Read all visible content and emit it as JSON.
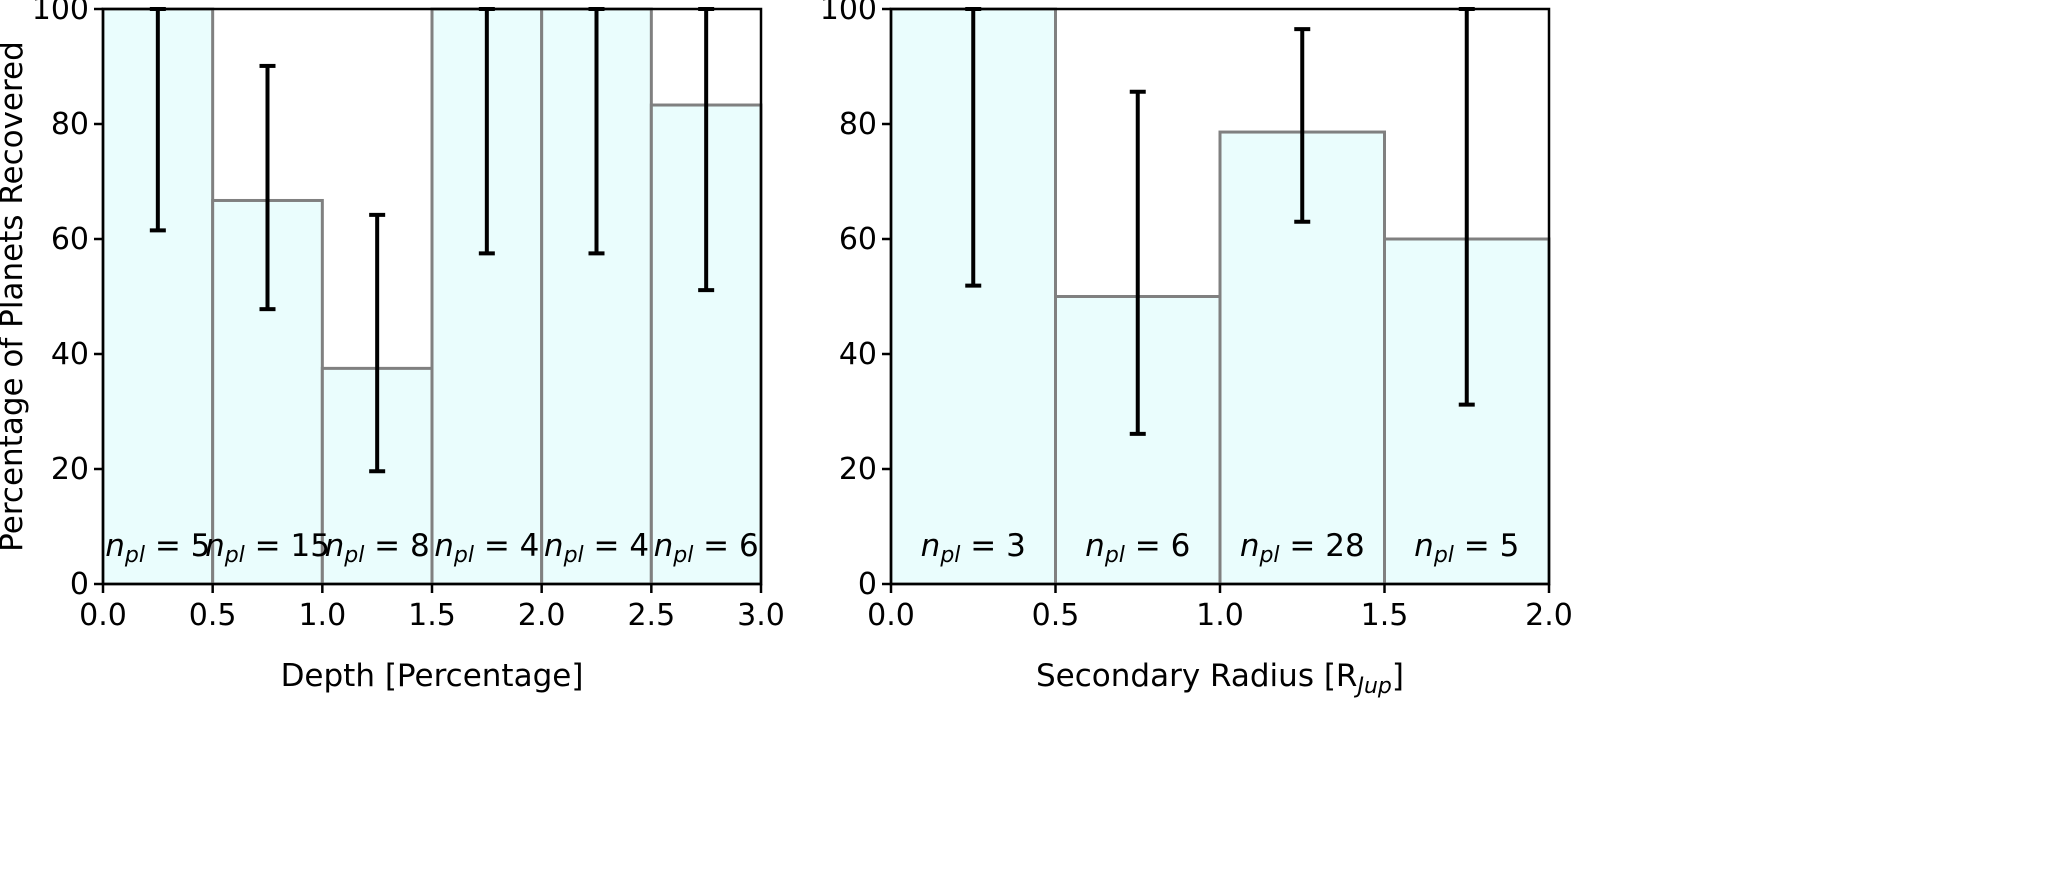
{
  "chart_data": [
    {
      "type": "bar",
      "bin_edges": [
        0.0,
        0.5,
        1.0,
        1.5,
        2.0,
        2.5,
        3.0
      ],
      "values": [
        100,
        66.7,
        37.5,
        100,
        100,
        83.3
      ],
      "error_low": [
        61.5,
        47.8,
        19.6,
        57.5,
        57.5,
        51.1
      ],
      "error_high": [
        100,
        90.1,
        64.2,
        100,
        100,
        100
      ],
      "n_pl": [
        "5",
        "15",
        "8",
        "4",
        "4",
        "6"
      ],
      "xlabel": "Depth [Percentage]",
      "ylabel": "Percentage of Planets Recovered",
      "xlim": [
        0.0,
        3.0
      ],
      "ylim": [
        0,
        100
      ],
      "xticks": [
        "0.0",
        "0.5",
        "1.0",
        "1.5",
        "2.0",
        "2.5",
        "3.0"
      ],
      "yticks": [
        "0",
        "20",
        "40",
        "60",
        "80",
        "100"
      ],
      "bar_color": "#eafdfd",
      "edge_color": "#808080",
      "grid": false
    },
    {
      "type": "bar",
      "bin_edges": [
        0.0,
        0.5,
        1.0,
        1.5,
        2.0
      ],
      "values": [
        100,
        50,
        78.6,
        60
      ],
      "error_low": [
        51.9,
        26.1,
        63.0,
        31.2
      ],
      "error_high": [
        100,
        85.6,
        96.5,
        100
      ],
      "n_pl": [
        "3",
        "6",
        "28",
        "5"
      ],
      "xlabel": "Secondary Radius [R",
      "xlabel_sub": "Jup",
      "xlabel_end": "]",
      "xlim": [
        0.0,
        2.0
      ],
      "ylim": [
        0,
        100
      ],
      "xticks": [
        "0.0",
        "0.5",
        "1.0",
        "1.5",
        "2.0"
      ],
      "yticks": [
        "0",
        "20",
        "40",
        "60",
        "80",
        "100"
      ],
      "bar_color": "#eafdfd",
      "edge_color": "#808080",
      "grid": false
    }
  ]
}
